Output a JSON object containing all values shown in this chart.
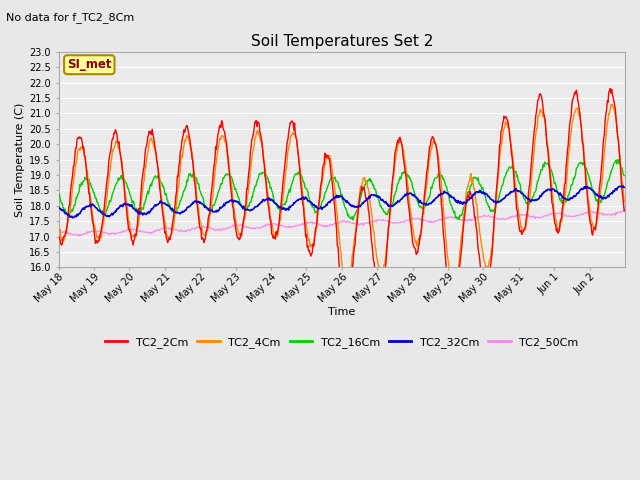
{
  "title": "Soil Temperatures Set 2",
  "subtitle": "No data for f_TC2_8Cm",
  "xlabel": "Time",
  "ylabel": "Soil Temperature (C)",
  "ylim": [
    16.0,
    23.0
  ],
  "yticks": [
    16.0,
    16.5,
    17.0,
    17.5,
    18.0,
    18.5,
    19.0,
    19.5,
    20.0,
    20.5,
    21.0,
    21.5,
    22.0,
    22.5,
    23.0
  ],
  "figure_bg": "#e8e8e8",
  "plot_bg": "#ebebeb",
  "grid_color": "#ffffff",
  "lines": {
    "TC2_2Cm": {
      "color": "#ff0000",
      "lw": 1.0
    },
    "TC2_4Cm": {
      "color": "#ff8800",
      "lw": 1.0
    },
    "TC2_16Cm": {
      "color": "#00cc00",
      "lw": 1.0
    },
    "TC2_32Cm": {
      "color": "#0000cc",
      "lw": 1.2
    },
    "TC2_50Cm": {
      "color": "#ff88ee",
      "lw": 0.9
    }
  },
  "legend_label": "SI_met",
  "legend_bg": "#ffff99",
  "legend_border": "#aa8800",
  "x_tick_labels": [
    "May 18",
    "May 19",
    "May 20",
    "May 21",
    "May 22",
    "May 23",
    "May 24",
    "May 25",
    "May 26",
    "May 27",
    "May 28",
    "May 29",
    "May 30",
    "May 31",
    "Jun 1",
    "Jun 2"
  ],
  "n_days": 16,
  "pts_per_day": 48,
  "title_fontsize": 11,
  "subtitle_fontsize": 8,
  "axis_label_fontsize": 8,
  "tick_fontsize": 7,
  "legend_fontsize": 8
}
